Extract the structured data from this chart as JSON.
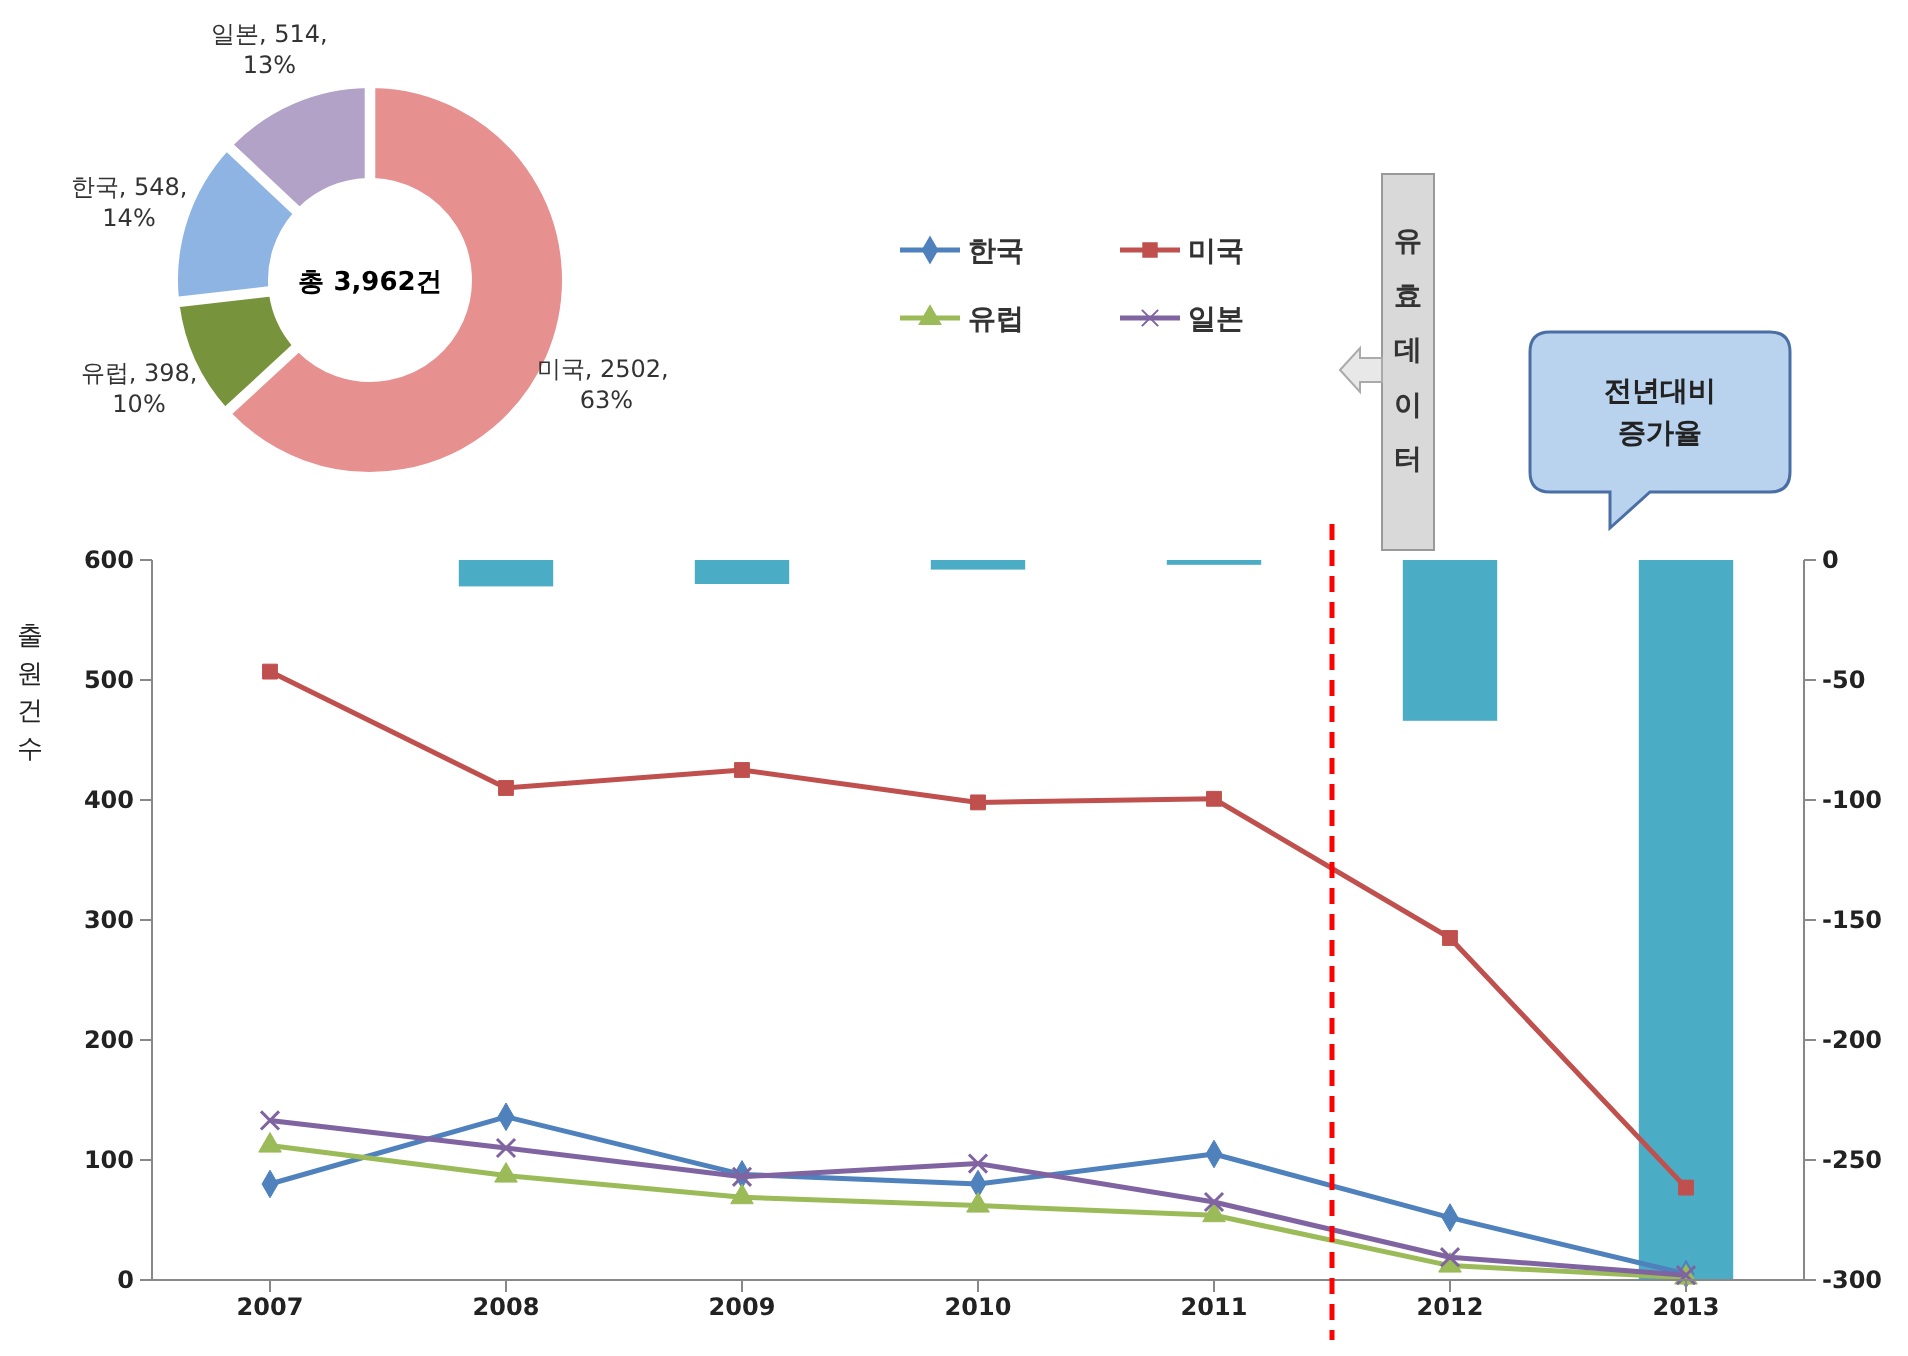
{
  "chart_data": [
    {
      "type": "donut",
      "categories": [
        "미국",
        "유럽",
        "한국",
        "일본"
      ],
      "values": [
        2502,
        398,
        548,
        514
      ],
      "colors": [
        "#e6908f",
        "#77933c",
        "#8db4e2",
        "#b3a2c7"
      ],
      "value_labels": [
        "2502,  63%",
        "398, 10%",
        "548, 14%",
        "514, 13%"
      ],
      "annotations": [
        "총 3,962건"
      ]
    },
    {
      "type": "line",
      "x": [
        2007,
        2008,
        2009,
        2010,
        2011,
        2012,
        2013
      ],
      "xlim": [
        2006.5,
        2013.5
      ],
      "xticks": [
        2007,
        2008,
        2009,
        2010,
        2011,
        2012,
        2013
      ],
      "ylabel": "출원건수",
      "ylim": [
        0,
        600
      ],
      "yticks": [
        0,
        100,
        200,
        300,
        400,
        500,
        600
      ],
      "y2lim": [
        -300,
        0
      ],
      "y2ticks": [
        -300,
        -250,
        -200,
        -150,
        -100,
        -50,
        0
      ],
      "series": [
        {
          "name": "한국",
          "color": "#4f81bd",
          "marker": "diamond",
          "values": [
            80,
            136,
            88,
            80,
            105,
            52,
            5
          ]
        },
        {
          "name": "미국",
          "color": "#c0504d",
          "marker": "square",
          "values": [
            507,
            410,
            425,
            398,
            401,
            285,
            77
          ]
        },
        {
          "name": "유럽",
          "color": "#9bbb59",
          "marker": "triangle",
          "values": [
            112,
            87,
            69,
            62,
            54,
            12,
            2
          ]
        },
        {
          "name": "일본",
          "color": "#8064a2",
          "marker": "cross",
          "values": [
            133,
            110,
            86,
            97,
            65,
            19,
            4
          ]
        },
        {
          "type": "bar",
          "axis": "y2",
          "color": "#4bacc6",
          "values": [
            null,
            -11,
            -10,
            -4,
            -2,
            -67,
            -300
          ]
        }
      ],
      "legend": "top",
      "grid": false,
      "ref_lines": [
        {
          "axis": "x",
          "value": 2011.5,
          "label": "유효데이터",
          "color": "#ff0000",
          "line_style": "dashed"
        }
      ],
      "annotations": [
        "전년대비 증가율"
      ]
    }
  ]
}
